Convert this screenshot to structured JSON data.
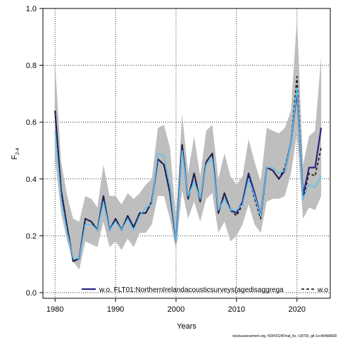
{
  "chart_data": {
    "type": "line",
    "xlabel": "Years",
    "ylabel_main": "F",
    "ylabel_sub": "2-4",
    "footer_note": "stockassessment.org, NSH2024Final_fix, r18765, git:1cc464b8068",
    "xlim": [
      1978,
      2025.5
    ],
    "ylim": [
      -0.02,
      1.0
    ],
    "xticks": [
      "1980",
      "1990",
      "2000",
      "2010",
      "2020"
    ],
    "yticks": [
      "0.0",
      "0.2",
      "0.4",
      "0.6",
      "0.8",
      "1.0"
    ],
    "grid": true,
    "legend_position": "bottom",
    "years": [
      1980,
      1981,
      1982,
      1983,
      1984,
      1985,
      1986,
      1987,
      1988,
      1989,
      1990,
      1991,
      1992,
      1993,
      1994,
      1995,
      1996,
      1997,
      1998,
      1999,
      2000,
      2001,
      2002,
      2003,
      2004,
      2005,
      2006,
      2007,
      2008,
      2009,
      2010,
      2011,
      2012,
      2013,
      2014,
      2015,
      2016,
      2017,
      2018,
      2019,
      2020,
      2021,
      2022,
      2023,
      2024
    ],
    "band": {
      "color": "#bebebe",
      "lower": [
        0.47,
        0.28,
        0.18,
        0.11,
        0.08,
        0.18,
        0.17,
        0.16,
        0.25,
        0.16,
        0.18,
        0.15,
        0.19,
        0.16,
        0.21,
        0.21,
        0.24,
        0.34,
        0.34,
        0.26,
        0.15,
        0.36,
        0.26,
        0.32,
        0.25,
        0.33,
        0.35,
        0.21,
        0.25,
        0.18,
        0.2,
        0.24,
        0.31,
        0.24,
        0.21,
        0.32,
        0.33,
        0.33,
        0.34,
        0.42,
        0.56,
        0.26,
        0.3,
        0.29,
        0.34
      ],
      "upper": [
        0.81,
        0.46,
        0.34,
        0.26,
        0.25,
        0.34,
        0.33,
        0.3,
        0.45,
        0.34,
        0.34,
        0.31,
        0.35,
        0.33,
        0.35,
        0.38,
        0.4,
        0.58,
        0.59,
        0.51,
        0.26,
        0.63,
        0.42,
        0.55,
        0.41,
        0.57,
        0.59,
        0.4,
        0.49,
        0.41,
        0.38,
        0.41,
        0.54,
        0.46,
        0.39,
        0.58,
        0.57,
        0.56,
        0.58,
        0.64,
        0.97,
        0.45,
        0.55,
        0.57,
        0.83
      ]
    },
    "series": [
      {
        "name": "w.o. FLT01:NorthernIrelandacousticsurveys(agedisaggrega",
        "color": "#2b2582",
        "dash": "",
        "width": 2.2,
        "values": [
          0.64,
          0.36,
          0.23,
          0.11,
          0.12,
          0.26,
          0.25,
          0.22,
          0.34,
          0.22,
          0.26,
          0.22,
          0.27,
          0.23,
          0.28,
          0.28,
          0.32,
          0.47,
          0.45,
          0.35,
          0.18,
          0.52,
          0.33,
          0.42,
          0.32,
          0.46,
          0.49,
          0.28,
          0.35,
          0.29,
          0.28,
          0.32,
          0.42,
          0.35,
          0.27,
          0.44,
          0.43,
          0.4,
          0.43,
          0.53,
          0.71,
          0.34,
          0.44,
          0.44,
          0.58
        ]
      },
      {
        "name": "w.o",
        "color": "#222222",
        "dash": "4,3",
        "width": 1.8,
        "values": [
          0.64,
          0.36,
          0.23,
          0.11,
          0.12,
          0.26,
          0.25,
          0.22,
          0.34,
          0.22,
          0.26,
          0.22,
          0.27,
          0.23,
          0.28,
          0.28,
          0.32,
          0.47,
          0.45,
          0.35,
          0.18,
          0.52,
          0.33,
          0.42,
          0.32,
          0.46,
          0.49,
          0.28,
          0.35,
          0.29,
          0.27,
          0.31,
          0.41,
          0.33,
          0.26,
          0.44,
          0.43,
          0.4,
          0.44,
          0.53,
          0.76,
          0.33,
          0.42,
          0.41,
          0.51
        ]
      },
      {
        "name": "",
        "color": "#5bc2f0",
        "dash": "",
        "width": 1.6,
        "values": [
          0.57,
          0.33,
          0.21,
          0.12,
          0.12,
          0.24,
          0.24,
          0.22,
          0.32,
          0.22,
          0.25,
          0.22,
          0.26,
          0.22,
          0.27,
          0.3,
          0.31,
          0.49,
          0.48,
          0.38,
          0.18,
          0.5,
          0.34,
          0.39,
          0.33,
          0.45,
          0.47,
          0.29,
          0.33,
          0.29,
          0.29,
          0.31,
          0.4,
          0.34,
          0.27,
          0.44,
          0.44,
          0.42,
          0.43,
          0.53,
          0.72,
          0.33,
          0.38,
          0.37,
          0.41
        ]
      }
    ]
  }
}
